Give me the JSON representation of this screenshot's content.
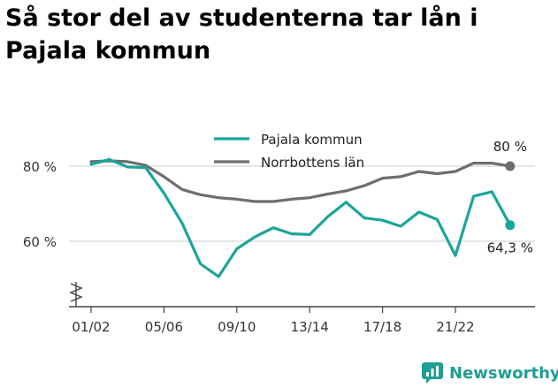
{
  "title": "Så stor del av studenterna tar lån i Pajala kommun",
  "brand": {
    "name": "Newsworthy",
    "icon": "newsworthy-logo-icon",
    "color": "#1f9e92"
  },
  "chart_data": {
    "type": "line",
    "title": "Så stor del av studenterna tar lån i Pajala kommun",
    "x_ticks": [
      "01/02",
      "05/06",
      "09/10",
      "13/14",
      "17/18",
      "21/22"
    ],
    "y_ticks": [
      "60 %",
      "80 %"
    ],
    "ylim": [
      48,
      86
    ],
    "grid": true,
    "legend_position": "top",
    "series": [
      {
        "name": "Pajala kommun",
        "color": "#1aa59a",
        "values": [
          80.5,
          81.8,
          79.8,
          79.6,
          72.8,
          64.8,
          54.0,
          50.6,
          58.0,
          61.2,
          63.6,
          62.0,
          61.8,
          66.6,
          70.4,
          66.2,
          65.6,
          64.0,
          67.8,
          65.8,
          56.2,
          72.0,
          73.2,
          64.3
        ],
        "end_label": "64,3 %"
      },
      {
        "name": "Norrbottens län",
        "color": "#6e6e70",
        "values": [
          81.2,
          81.4,
          81.2,
          80.2,
          77.2,
          73.8,
          72.4,
          71.6,
          71.2,
          70.6,
          70.6,
          71.2,
          71.6,
          72.6,
          73.4,
          74.8,
          76.8,
          77.2,
          78.6,
          78.0,
          78.6,
          80.8,
          80.8,
          80.0
        ],
        "end_label": "80 %"
      }
    ]
  }
}
